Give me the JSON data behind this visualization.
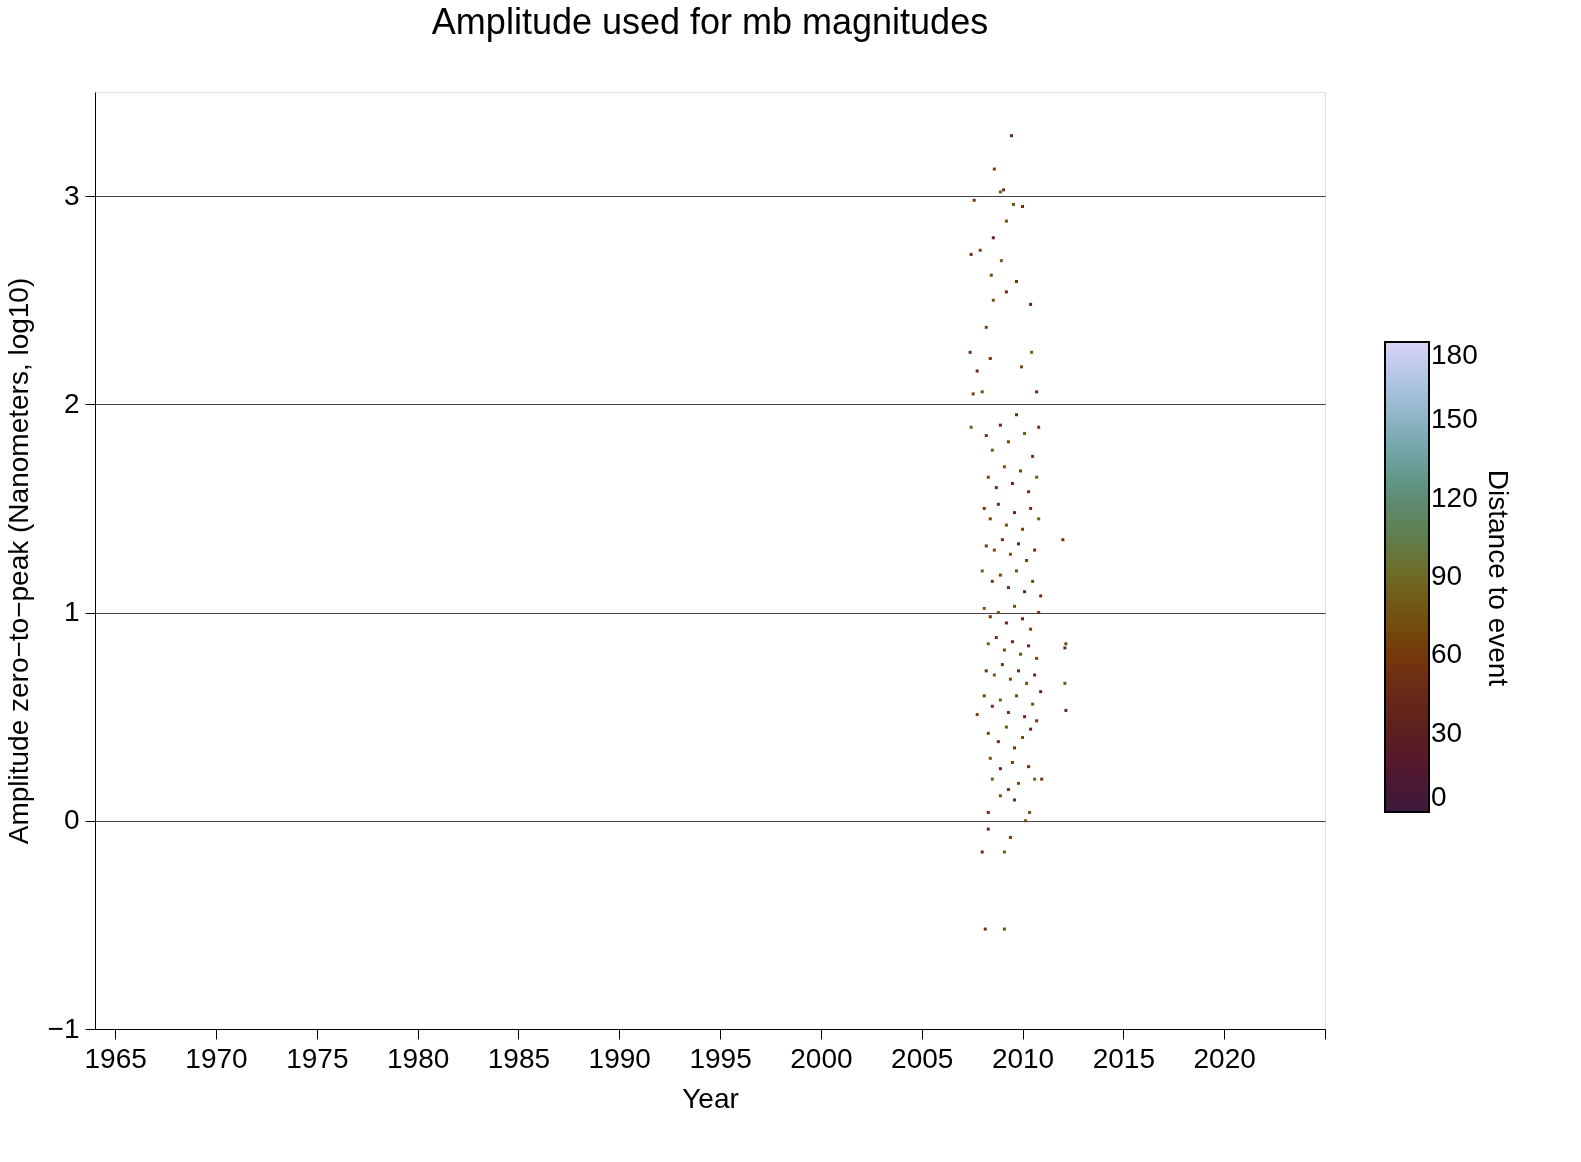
{
  "chart_data": {
    "type": "scatter",
    "title": "Amplitude used for mb magnitudes",
    "xlabel": "Year",
    "ylabel": "Amplitude zero−to−peak (Nanometers, log10)",
    "clabel": "Distance to event",
    "xlim": [
      1964,
      2025
    ],
    "ylim": [
      -1,
      3.5
    ],
    "xticks": [
      1965,
      1970,
      1975,
      1980,
      1985,
      1990,
      1995,
      2000,
      2005,
      2010,
      2015,
      2020,
      {
        "value": 2025,
        "label": null
      }
    ],
    "yticks": [
      {
        "value": -1,
        "label": "−1"
      },
      0,
      1,
      2,
      3
    ],
    "clim": [
      0,
      180
    ],
    "cticks": [
      0,
      30,
      60,
      90,
      120,
      150,
      180
    ],
    "grid": "y",
    "marker": "square",
    "series": [
      {
        "x": [
          2009.45,
          2008.6,
          2009.06,
          2008.9,
          2007.6,
          2009.55,
          2010.0,
          2009.2,
          2008.55,
          2007.9,
          2007.45,
          2008.95,
          2009.7,
          2008.45,
          2009.2,
          2008.55,
          2010.4,
          2008.2,
          2007.4,
          2010.45,
          2008.4,
          2009.95,
          2007.75,
          2008.0,
          2010.7,
          2007.55,
          2010.8,
          2007.45,
          2012.0,
          2012.15,
          2012.1,
          2012.1,
          2012.15,
          2007.75,
          2010.7,
          2010.6,
          2010.95,
          2010.35,
          2008.3,
          2010.15,
          2008.3,
          2009.4,
          2008.0,
          2009.1,
          2008.15,
          2009.1,
          2008.2,
          2008.5,
          2008.9,
          2009.3,
          2009.7,
          2010.1,
          2010.5,
          2008.3,
          2008.7,
          2009.1,
          2009.5,
          2009.9,
          2010.3,
          2010.7,
          2008.1,
          2008.4,
          2008.8,
          2009.2,
          2009.6,
          2010.0,
          2010.4,
          2010.8,
          2008.2,
          2008.6,
          2009.0,
          2009.4,
          2009.8,
          2010.2,
          2010.6,
          2008.0,
          2008.5,
          2008.9,
          2009.3,
          2009.7,
          2010.1,
          2010.5,
          2010.9,
          2008.1,
          2008.4,
          2008.8,
          2009.2,
          2009.6,
          2010.0,
          2010.4,
          2010.8,
          2008.3,
          2008.7,
          2009.1,
          2009.5,
          2009.9,
          2010.3,
          2010.7,
          2008.2,
          2008.6,
          2009.0,
          2009.4,
          2009.8,
          2010.2,
          2010.6,
          2008.1,
          2008.5,
          2008.9,
          2009.3,
          2009.7,
          2010.1,
          2010.5,
          2010.9,
          2008.3,
          2008.8,
          2009.2,
          2009.6,
          2010.0,
          2010.4,
          2008.4,
          2008.9,
          2009.5,
          2010.3,
          2008.5,
          2009.3,
          2009.8,
          2009.6,
          2008.9
        ],
        "values": [
          3.29,
          3.13,
          3.03,
          3.02,
          2.98,
          2.96,
          2.95,
          2.88,
          2.8,
          2.74,
          2.72,
          2.69,
          2.59,
          2.62,
          2.54,
          2.5,
          2.48,
          2.37,
          2.25,
          2.25,
          2.22,
          2.18,
          2.16,
          2.06,
          2.06,
          2.05,
          1.89,
          1.89,
          1.35,
          0.85,
          0.83,
          0.66,
          0.53,
          0.51,
          0.48,
          0.2,
          0.2,
          0.04,
          0.04,
          0.0,
          -0.04,
          -0.08,
          -0.15,
          -0.15,
          -0.52,
          -0.52,
          1.85,
          1.78,
          1.9,
          1.82,
          1.95,
          1.86,
          1.75,
          1.65,
          1.6,
          1.7,
          1.62,
          1.68,
          1.58,
          1.65,
          1.5,
          1.45,
          1.52,
          1.42,
          1.48,
          1.4,
          1.5,
          1.45,
          1.32,
          1.3,
          1.35,
          1.28,
          1.33,
          1.25,
          1.3,
          1.2,
          1.15,
          1.18,
          1.12,
          1.2,
          1.1,
          1.15,
          1.08,
          1.02,
          0.98,
          1.0,
          0.95,
          1.03,
          0.97,
          0.92,
          1.0,
          0.85,
          0.88,
          0.82,
          0.86,
          0.8,
          0.84,
          0.78,
          0.72,
          0.7,
          0.75,
          0.68,
          0.72,
          0.66,
          0.7,
          0.6,
          0.55,
          0.58,
          0.52,
          0.6,
          0.5,
          0.56,
          0.62,
          0.42,
          0.38,
          0.45,
          0.35,
          0.4,
          0.44,
          0.3,
          0.25,
          0.28,
          0.26,
          0.2,
          0.15,
          0.18,
          0.1,
          0.12
        ],
        "cvalues": [
          40,
          65,
          50,
          80,
          55,
          70,
          45,
          75,
          40,
          65,
          50,
          80,
          55,
          70,
          45,
          75,
          40,
          65,
          50,
          80,
          55,
          70,
          45,
          75,
          40,
          65,
          50,
          80,
          55,
          70,
          45,
          75,
          40,
          65,
          50,
          80,
          55,
          70,
          45,
          75,
          40,
          65,
          50,
          80,
          55,
          70,
          45,
          75,
          40,
          65,
          50,
          80,
          55,
          70,
          45,
          75,
          40,
          65,
          50,
          80,
          55,
          70,
          45,
          75,
          40,
          65,
          50,
          80,
          55,
          70,
          45,
          75,
          40,
          65,
          50,
          80,
          55,
          70,
          45,
          75,
          40,
          65,
          50,
          80,
          55,
          70,
          45,
          75,
          40,
          65,
          50,
          80,
          55,
          70,
          45,
          75,
          40,
          65,
          50,
          80,
          55,
          70,
          45,
          75,
          40,
          65,
          50,
          80,
          55,
          70,
          45,
          75,
          40,
          65,
          50,
          80,
          55,
          70,
          45,
          75,
          40,
          65,
          50,
          80,
          55,
          70,
          45,
          75
        ]
      }
    ]
  }
}
